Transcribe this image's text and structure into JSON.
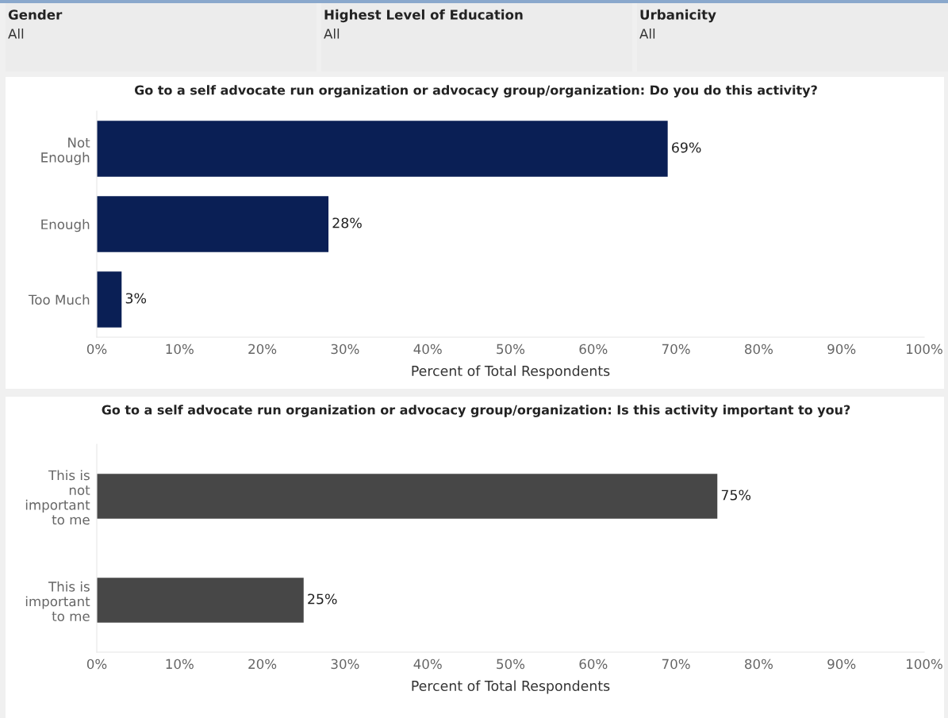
{
  "chart_data": [
    {
      "type": "bar",
      "orientation": "horizontal",
      "title": "Go to a self advocate run organization or advocacy group/organization: Do you do this activity?",
      "xlabel": "Percent of Total Respondents",
      "annotations": [
        "Gender",
        "All",
        "Highest Level of Education",
        "All",
        "Urbanicity",
        "All"
      ],
      "categories": [
        "Not Enough",
        "Enough",
        "Too Much"
      ],
      "values": [
        69,
        28,
        3
      ],
      "color": "#0a1f55",
      "value_labels": [
        "69%",
        "28%",
        "3%"
      ],
      "xlim": [
        0,
        100
      ],
      "xticks": [
        {
          "value": 0,
          "label": "0%"
        },
        {
          "value": 10,
          "label": "10%"
        },
        {
          "value": 20,
          "label": "20%"
        },
        {
          "value": 30,
          "label": "30%"
        },
        {
          "value": 40,
          "label": "40%"
        },
        {
          "value": 50,
          "label": "50%"
        },
        {
          "value": 60,
          "label": "60%"
        },
        {
          "value": 70,
          "label": "70%"
        },
        {
          "value": 80,
          "label": "80%"
        },
        {
          "value": 90,
          "label": "90%"
        },
        {
          "value": 100,
          "label": "100%"
        }
      ],
      "grid": false,
      "legend": false
    },
    {
      "type": "bar",
      "orientation": "horizontal",
      "title": "Go to a self advocate run organization or advocacy group/organization: Is this activity important to you?",
      "xlabel": "Percent of Total Respondents",
      "categories": [
        "This is not important to me",
        "This is important to me"
      ],
      "values": [
        75,
        25
      ],
      "color": "#474747",
      "value_labels": [
        "75%",
        "25%"
      ],
      "xlim": [
        0,
        100
      ],
      "xticks": [
        {
          "value": 0,
          "label": "0%"
        },
        {
          "value": 10,
          "label": "10%"
        },
        {
          "value": 20,
          "label": "20%"
        },
        {
          "value": 30,
          "label": "30%"
        },
        {
          "value": 40,
          "label": "40%"
        },
        {
          "value": 50,
          "label": "50%"
        },
        {
          "value": 60,
          "label": "60%"
        },
        {
          "value": 70,
          "label": "70%"
        },
        {
          "value": 80,
          "label": "80%"
        },
        {
          "value": 90,
          "label": "90%"
        },
        {
          "value": 100,
          "label": "100%"
        }
      ],
      "grid": false,
      "legend": false
    }
  ]
}
